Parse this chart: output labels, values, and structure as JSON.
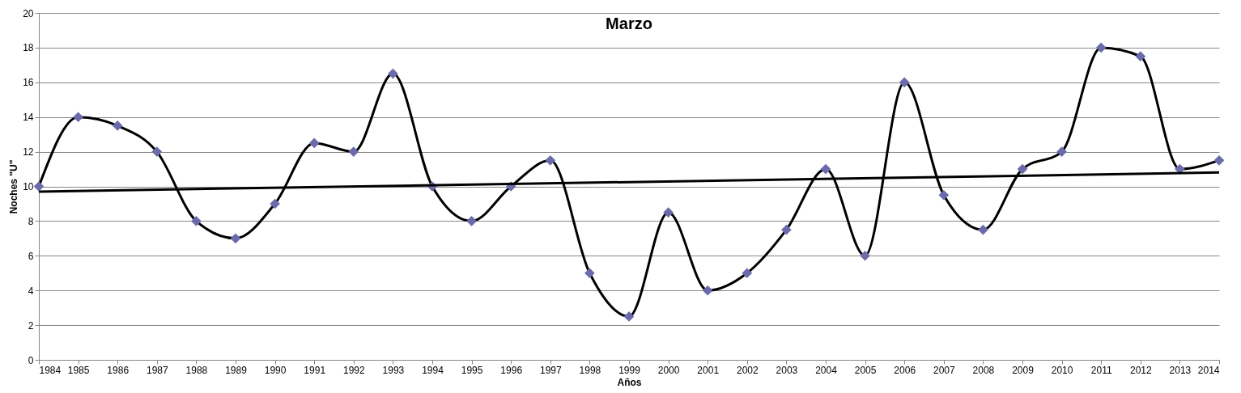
{
  "chart_data": {
    "type": "line",
    "title": "Marzo",
    "xlabel": "Años",
    "ylabel": "Noches \"U\"",
    "x": [
      1984,
      1985,
      1986,
      1987,
      1988,
      1989,
      1990,
      1991,
      1992,
      1993,
      1994,
      1995,
      1996,
      1997,
      1998,
      1999,
      2000,
      2001,
      2002,
      2003,
      2004,
      2005,
      2006,
      2007,
      2008,
      2009,
      2010,
      2011,
      2012,
      2013,
      2014
    ],
    "series": [
      {
        "color": "#000000",
        "colors": [
          "#6b6bab",
          "#6b6bab",
          "#6b6bab",
          "#6b6bab",
          "#6b6bab",
          "#6b6bab",
          "#6b6bab",
          "#6b6bab",
          "#6b6bab",
          "#6b6bab",
          "#6b6bab",
          "#6b6bab",
          "#6b6bab",
          "#6b6bab",
          "#6b6bab",
          "#6b6bab",
          "#6b6bab",
          "#6b6bab",
          "#6b6bab",
          "#6b6bab",
          "#6b6bab",
          "#6b6bab",
          "#6b6bab",
          "#6b6bab",
          "#6b6bab",
          "#6b6bab",
          "#6b6bab",
          "#6b6bab",
          "#6b6bab",
          "#6b6bab",
          "#6b6bab"
        ],
        "marker": "diamond",
        "values": [
          10,
          14,
          13.5,
          12,
          8,
          7,
          9,
          12.5,
          12,
          16.5,
          10,
          8,
          10,
          11.5,
          5,
          2.5,
          8.5,
          4,
          5,
          7.5,
          11,
          6,
          16,
          9.5,
          7.5,
          11,
          12,
          18,
          17.5,
          11,
          11.5
        ]
      },
      {
        "type": "line",
        "color": "#000000",
        "marker": "none",
        "x": [
          1984,
          2014
        ],
        "values": [
          9.7,
          10.8
        ]
      }
    ],
    "xlim": [
      1984,
      2014
    ],
    "xticks": [
      1984,
      1985,
      1986,
      1987,
      1988,
      1989,
      1990,
      1991,
      1992,
      1993,
      1994,
      1995,
      1996,
      1997,
      1998,
      1999,
      2000,
      2001,
      2002,
      2003,
      2004,
      2005,
      2006,
      2007,
      2008,
      2009,
      2010,
      2011,
      2012,
      2013,
      2014
    ],
    "ylim": [
      0,
      20
    ],
    "yticks": [
      0,
      2,
      4,
      6,
      8,
      10,
      12,
      14,
      16,
      18,
      20
    ],
    "grid": "y"
  }
}
